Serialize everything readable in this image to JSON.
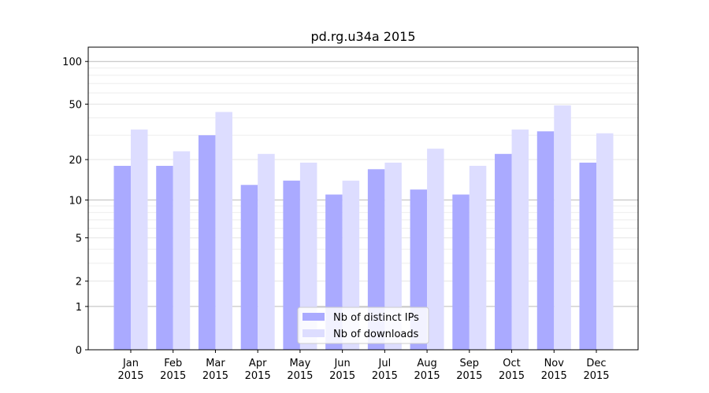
{
  "chart_data": {
    "type": "bar",
    "title": "pd.rg.u34a 2015",
    "xlabel": "",
    "ylabel": "",
    "y_scale": "symlog (log10(1+y))",
    "ylim": [
      0,
      126
    ],
    "y_ticks": [
      0,
      1,
      2,
      5,
      10,
      20,
      50,
      100
    ],
    "grid": true,
    "legend_position": "bottom-center",
    "categories": [
      "Jan\n2015",
      "Feb\n2015",
      "Mar\n2015",
      "Apr\n2015",
      "May\n2015",
      "Jun\n2015",
      "Jul\n2015",
      "Aug\n2015",
      "Sep\n2015",
      "Oct\n2015",
      "Nov\n2015",
      "Dec\n2015"
    ],
    "series": [
      {
        "name": "Nb of distinct IPs",
        "color": "#aaaaff",
        "values": [
          18,
          18,
          30,
          13,
          14,
          11,
          17,
          12,
          11,
          22,
          32,
          19
        ]
      },
      {
        "name": "Nb of downloads",
        "color": "#ddddff",
        "values": [
          33,
          23,
          44,
          22,
          19,
          14,
          19,
          24,
          18,
          33,
          49,
          31
        ]
      }
    ]
  }
}
